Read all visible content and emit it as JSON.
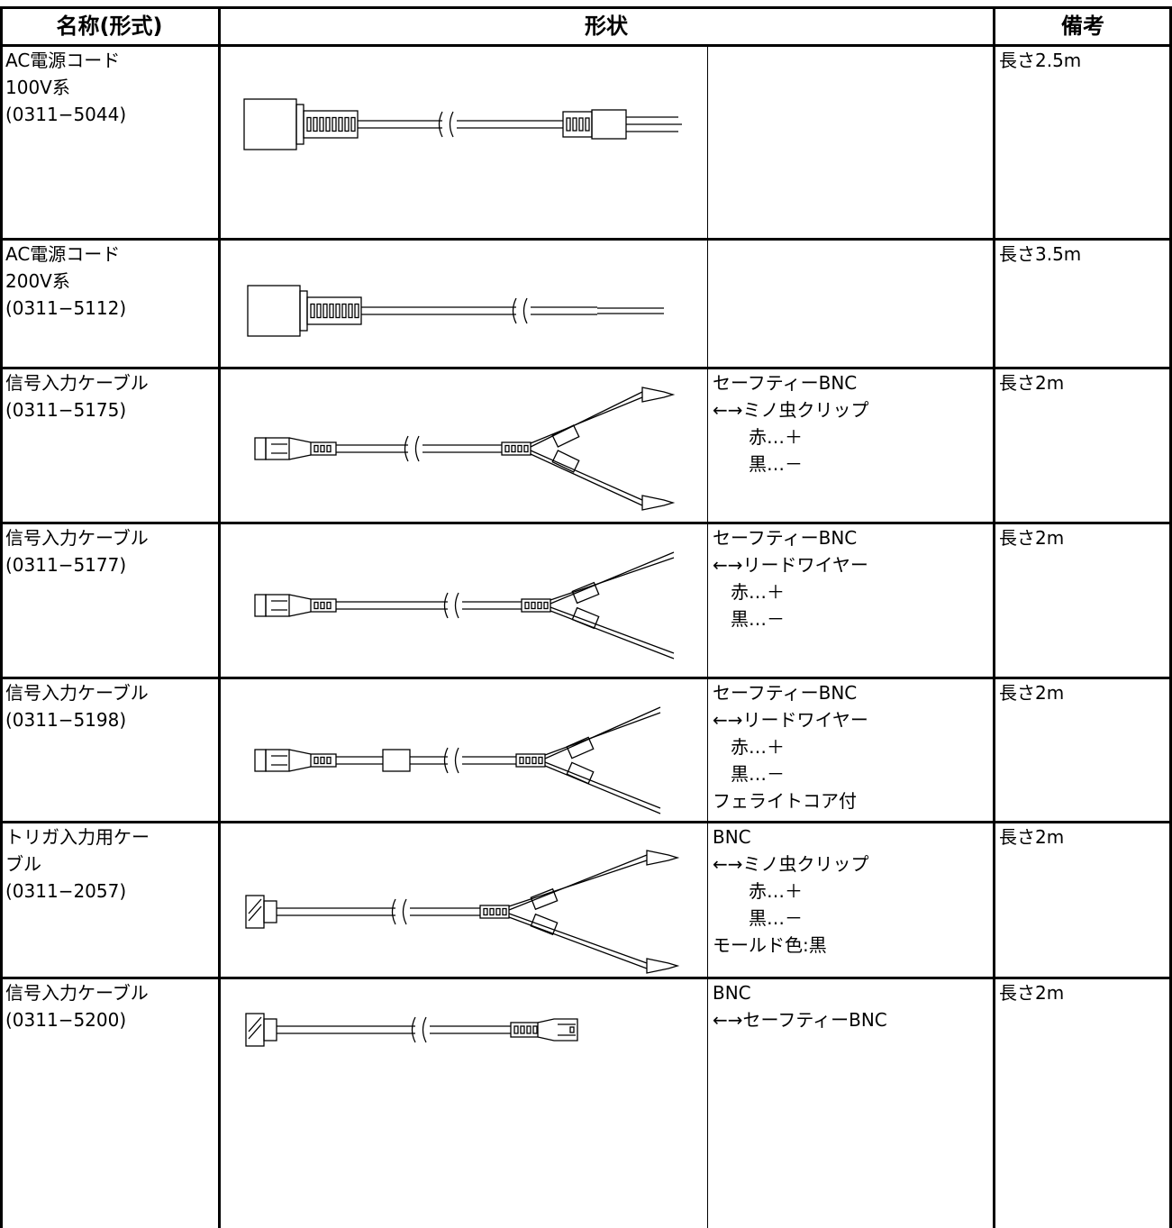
{
  "header": [
    "名称(形式)",
    "形状",
    "備考"
  ],
  "rows": [
    {
      "name": [
        "AC電源コード",
        "100V系",
        "(0311−5044)"
      ],
      "description": [],
      "remarks": "長さ2.5m"
    },
    {
      "name": [
        "AC電源コード",
        "200V系",
        "(0311−5112)"
      ],
      "description": [],
      "remarks": "長さ3.5m"
    },
    {
      "name": [
        "信号入力ケーブル",
        "(0311−5175)"
      ],
      "description": [
        "セーフティーBNC",
        "←→ミノ虫クリップ",
        "　　赤…＋",
        "　　黒…－"
      ],
      "remarks": "長さ2m"
    },
    {
      "name": [
        "信号入力ケーブル",
        "(0311−5177)"
      ],
      "description": [
        "セーフティーBNC",
        "←→リードワイヤー",
        "　赤…＋",
        "　黒…－"
      ],
      "remarks": "長さ2m"
    },
    {
      "name": [
        "信号入力ケーブル",
        "(0311−5198)"
      ],
      "description": [
        "セーフティーBNC",
        "←→リードワイヤー",
        "　赤…＋",
        "　黒…－",
        "フェライトコア付"
      ],
      "remarks": "長さ2m"
    },
    {
      "name": [
        "トリガ入力用ケー",
        "ブル",
        "(0311−2057)"
      ],
      "description": [
        "BNC",
        "←→ミノ虫クリップ",
        "　　赤…＋",
        "　　黒…－",
        "モールド色:黒"
      ],
      "remarks": "長さ2m"
    },
    {
      "name": [
        "信号入力ケーブル",
        "(0311−5200)"
      ],
      "description": [
        "BNC",
        "←→セーフティーBNC"
      ],
      "remarks": "長さ2m"
    }
  ]
}
